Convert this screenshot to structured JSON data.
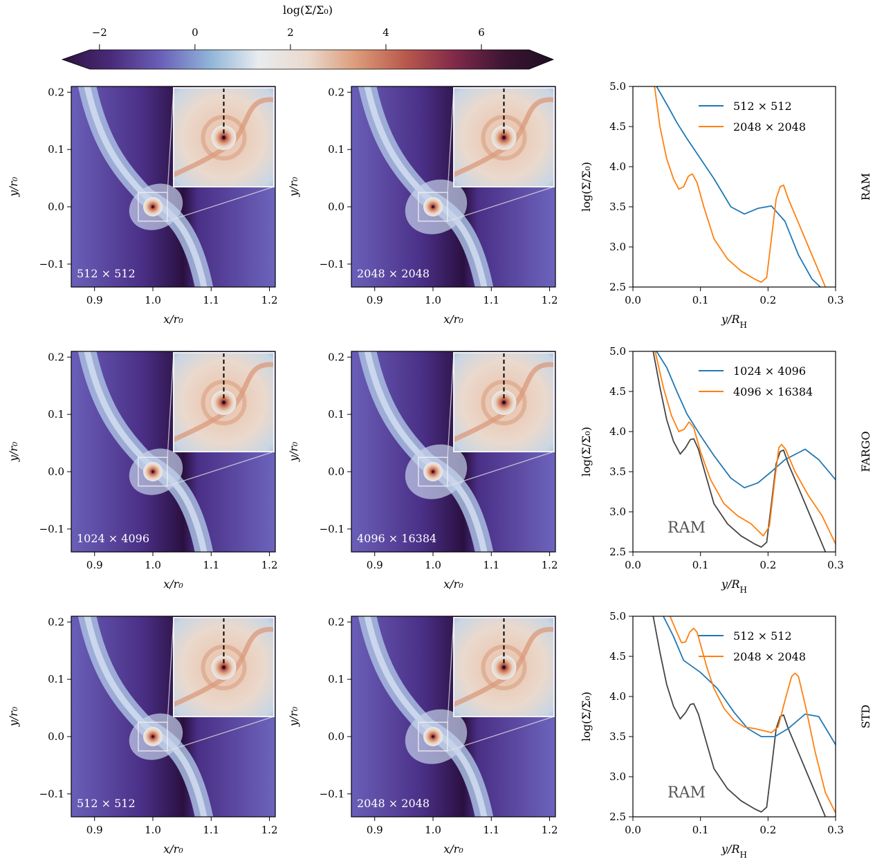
{
  "colorbar": {
    "label": "log(Σ/Σ₀)",
    "range": [
      -2.2,
      7.0
    ],
    "ticks": [
      "−2",
      "0",
      "2",
      "4",
      "6"
    ],
    "tick_values": [
      -2,
      0,
      2,
      4,
      6
    ],
    "colormap": [
      "#2d1240",
      "#4a2b7a",
      "#6a5fb8",
      "#8fb4d8",
      "#e8ecef",
      "#ead9cd",
      "#dc9a78",
      "#b8584c",
      "#80294a",
      "#3c1533",
      "#1e0e22"
    ]
  },
  "maps": {
    "xlabel": "x/r₀",
    "ylabel": "y/r₀",
    "x_ticks": [
      "0.9",
      "1.0",
      "1.1",
      "1.2"
    ],
    "x_tick_values": [
      0.9,
      1.0,
      1.1,
      1.2
    ],
    "y_ticks": [
      "−0.1",
      "0.0",
      "0.1",
      "0.2"
    ],
    "y_tick_values": [
      -0.1,
      0.0,
      0.1,
      0.2
    ],
    "xlim": [
      0.86,
      1.21
    ],
    "ylim": [
      -0.14,
      0.21
    ],
    "panels": [
      {
        "resolution": "512 × 512"
      },
      {
        "resolution": "2048 × 2048"
      },
      {
        "resolution": "1024 × 4096"
      },
      {
        "resolution": "4096 × 16384"
      },
      {
        "resolution": "512 × 512"
      },
      {
        "resolution": "2048 × 2048"
      }
    ]
  },
  "chart_data": [
    {
      "type": "line",
      "row_label": "RAM",
      "xlabel": "y/R_H",
      "ylabel": "log(Σ/Σ₀)",
      "xlim": [
        0.0,
        0.3
      ],
      "ylim": [
        2.5,
        5.0
      ],
      "x_ticks": [
        "0.0",
        "0.1",
        "0.2",
        "0.3"
      ],
      "y_ticks": [
        "2.5",
        "3.0",
        "3.5",
        "4.0",
        "4.5",
        "5.0"
      ],
      "legend_position": "top-right",
      "series": [
        {
          "name": "512 × 512",
          "color": "#1f77b4",
          "x": [
            0.035,
            0.052,
            0.065,
            0.08,
            0.1,
            0.12,
            0.145,
            0.165,
            0.185,
            0.205,
            0.225,
            0.245,
            0.265,
            0.29
          ],
          "y": [
            5.0,
            4.75,
            4.55,
            4.35,
            4.1,
            3.85,
            3.5,
            3.41,
            3.48,
            3.51,
            3.32,
            2.9,
            2.6,
            2.4
          ]
        },
        {
          "name": "2048 × 2048",
          "color": "#ff7f0e",
          "x": [
            0.032,
            0.04,
            0.05,
            0.06,
            0.068,
            0.075,
            0.082,
            0.088,
            0.095,
            0.105,
            0.12,
            0.14,
            0.16,
            0.18,
            0.19,
            0.198,
            0.205,
            0.212,
            0.218,
            0.223,
            0.23,
            0.245,
            0.26,
            0.275,
            0.29
          ],
          "y": [
            5.0,
            4.5,
            4.1,
            3.85,
            3.72,
            3.75,
            3.88,
            3.91,
            3.8,
            3.5,
            3.1,
            2.85,
            2.7,
            2.6,
            2.56,
            2.62,
            3.1,
            3.6,
            3.75,
            3.77,
            3.6,
            3.3,
            3.0,
            2.7,
            2.4
          ]
        }
      ]
    },
    {
      "type": "line",
      "row_label": "FARGO",
      "annotation": "RAM",
      "xlabel": "y/R_H",
      "ylabel": "log(Σ/Σ₀)",
      "xlim": [
        0.0,
        0.3
      ],
      "ylim": [
        2.5,
        5.0
      ],
      "x_ticks": [
        "0.0",
        "0.1",
        "0.2",
        "0.3"
      ],
      "y_ticks": [
        "2.5",
        "3.0",
        "3.5",
        "4.0",
        "4.5",
        "5.0"
      ],
      "legend_position": "top-right",
      "series": [
        {
          "name": "1024 × 4096",
          "color": "#1f77b4",
          "x": [
            0.035,
            0.05,
            0.065,
            0.08,
            0.1,
            0.12,
            0.145,
            0.165,
            0.185,
            0.205,
            0.225,
            0.255,
            0.275,
            0.3
          ],
          "y": [
            5.0,
            4.8,
            4.5,
            4.22,
            3.95,
            3.7,
            3.42,
            3.3,
            3.36,
            3.5,
            3.65,
            3.78,
            3.65,
            3.4
          ]
        },
        {
          "name": "4096 × 16384",
          "color": "#ff7f0e",
          "x": [
            0.033,
            0.045,
            0.057,
            0.068,
            0.076,
            0.083,
            0.09,
            0.1,
            0.115,
            0.135,
            0.155,
            0.175,
            0.193,
            0.202,
            0.21,
            0.216,
            0.22,
            0.226,
            0.24,
            0.26,
            0.28,
            0.3
          ],
          "y": [
            5.0,
            4.55,
            4.2,
            4.0,
            4.03,
            4.12,
            4.05,
            3.75,
            3.4,
            3.1,
            2.95,
            2.85,
            2.7,
            2.82,
            3.4,
            3.8,
            3.84,
            3.78,
            3.5,
            3.2,
            2.95,
            2.6
          ]
        },
        {
          "name": "",
          "color": "#444444",
          "x": [
            0.03,
            0.04,
            0.05,
            0.06,
            0.07,
            0.078,
            0.085,
            0.09,
            0.097,
            0.107,
            0.12,
            0.14,
            0.16,
            0.18,
            0.19,
            0.198,
            0.205,
            0.212,
            0.218,
            0.223,
            0.23,
            0.245,
            0.26,
            0.275,
            0.29
          ],
          "y": [
            5.0,
            4.55,
            4.15,
            3.88,
            3.72,
            3.8,
            3.9,
            3.91,
            3.78,
            3.48,
            3.1,
            2.85,
            2.7,
            2.6,
            2.56,
            2.62,
            3.1,
            3.6,
            3.75,
            3.77,
            3.6,
            3.3,
            3.0,
            2.7,
            2.4
          ]
        }
      ]
    },
    {
      "type": "line",
      "row_label": "STD",
      "annotation": "RAM",
      "xlabel": "y/R_H",
      "ylabel": "log(Σ/Σ₀)",
      "xlim": [
        0.0,
        0.3
      ],
      "ylim": [
        2.5,
        5.0
      ],
      "x_ticks": [
        "0.0",
        "0.1",
        "0.2",
        "0.3"
      ],
      "y_ticks": [
        "2.5",
        "3.0",
        "3.5",
        "4.0",
        "4.5",
        "5.0"
      ],
      "legend_position": "top-right",
      "series": [
        {
          "name": "512 × 512",
          "color": "#1f77b4",
          "x": [
            0.045,
            0.06,
            0.075,
            0.1,
            0.125,
            0.15,
            0.17,
            0.19,
            0.21,
            0.23,
            0.255,
            0.275,
            0.3
          ],
          "y": [
            5.0,
            4.75,
            4.45,
            4.3,
            4.1,
            3.8,
            3.6,
            3.5,
            3.5,
            3.6,
            3.78,
            3.75,
            3.4
          ]
        },
        {
          "name": "2048 × 2048",
          "color": "#ff7f0e",
          "x": [
            0.055,
            0.065,
            0.072,
            0.078,
            0.084,
            0.09,
            0.095,
            0.1,
            0.11,
            0.12,
            0.135,
            0.15,
            0.165,
            0.18,
            0.195,
            0.205,
            0.215,
            0.225,
            0.235,
            0.24,
            0.245,
            0.255,
            0.27,
            0.285,
            0.3
          ],
          "y": [
            5.0,
            4.8,
            4.67,
            4.68,
            4.8,
            4.85,
            4.8,
            4.65,
            4.35,
            4.1,
            3.85,
            3.7,
            3.62,
            3.6,
            3.57,
            3.55,
            3.62,
            3.95,
            4.25,
            4.29,
            4.25,
            3.9,
            3.3,
            2.8,
            2.55
          ]
        },
        {
          "name": "",
          "color": "#444444",
          "x": [
            0.03,
            0.04,
            0.05,
            0.06,
            0.07,
            0.078,
            0.085,
            0.09,
            0.097,
            0.107,
            0.12,
            0.14,
            0.16,
            0.18,
            0.19,
            0.198,
            0.205,
            0.212,
            0.218,
            0.223,
            0.23,
            0.245,
            0.26,
            0.275,
            0.29
          ],
          "y": [
            5.0,
            4.55,
            4.15,
            3.88,
            3.72,
            3.8,
            3.9,
            3.91,
            3.78,
            3.48,
            3.1,
            2.85,
            2.7,
            2.6,
            2.56,
            2.62,
            3.1,
            3.6,
            3.75,
            3.77,
            3.6,
            3.3,
            3.0,
            2.7,
            2.4
          ]
        }
      ]
    }
  ]
}
